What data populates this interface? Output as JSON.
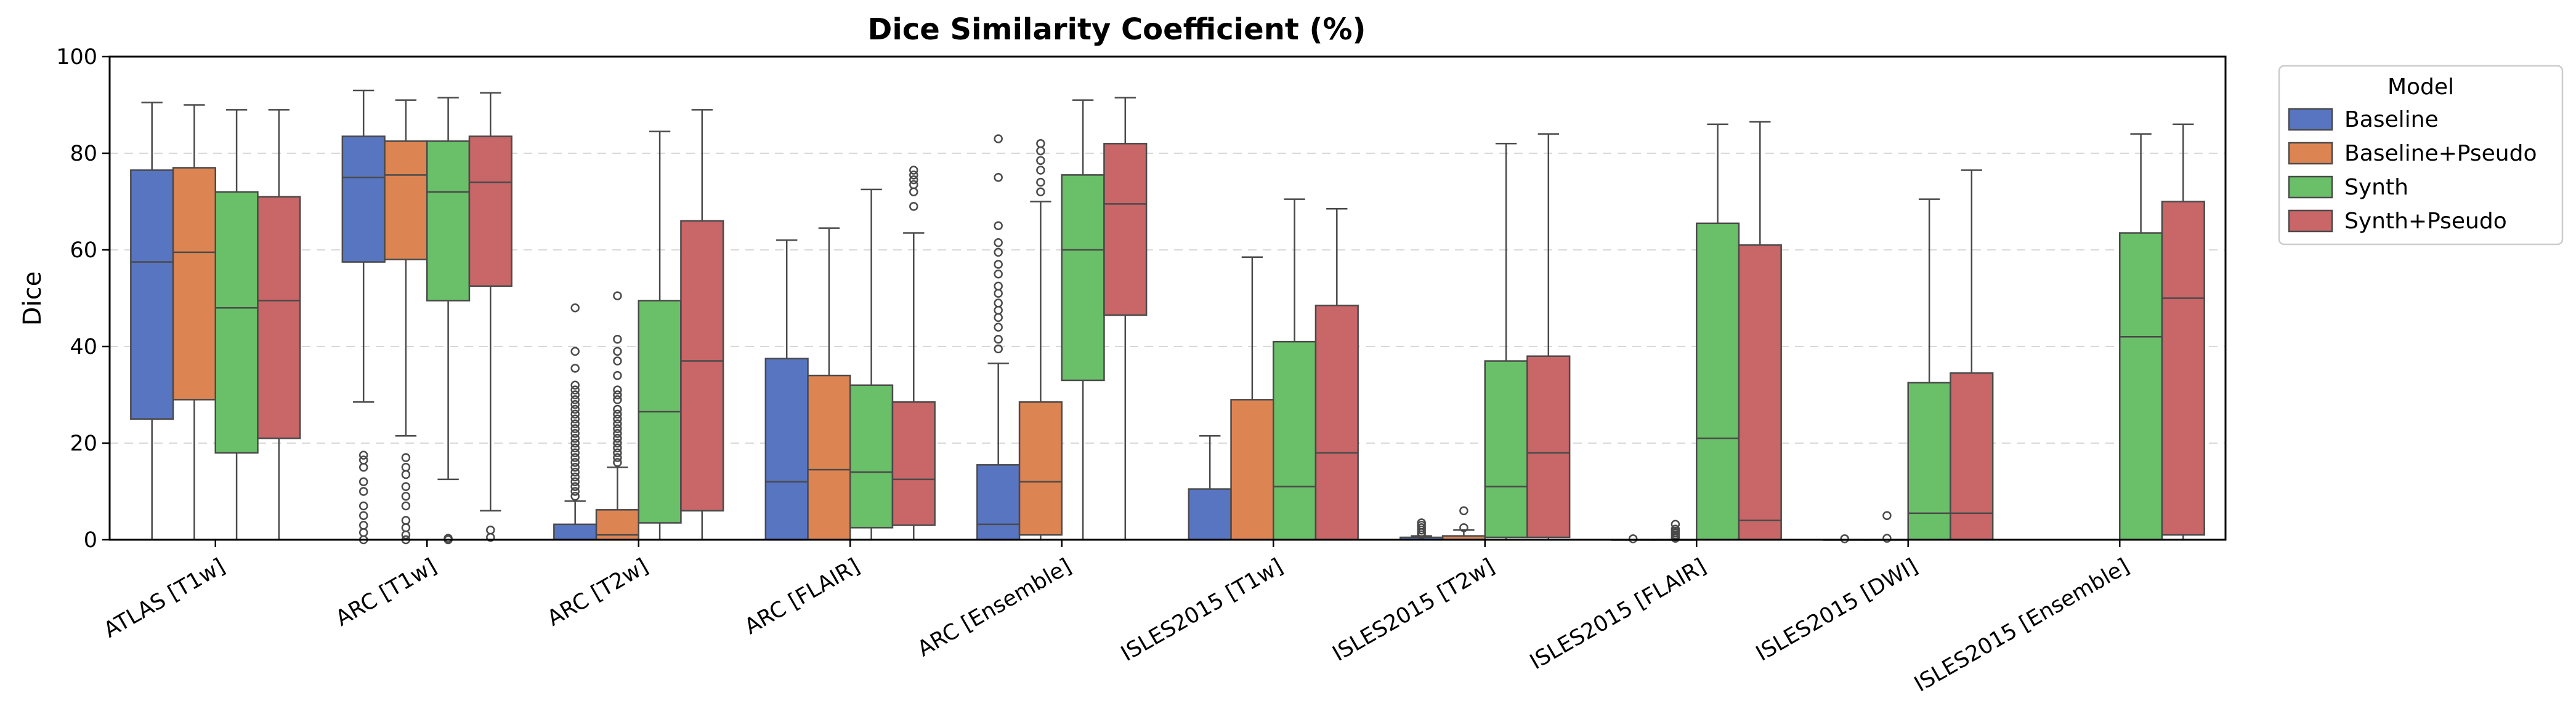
{
  "chart_data": {
    "type": "box",
    "title": "Dice Similarity Coefficient (%)",
    "xlabel": "",
    "ylabel": "Dice",
    "ylim": [
      0,
      100
    ],
    "yticks": [
      0,
      20,
      40,
      60,
      80,
      100
    ],
    "grid": "horizontal dashed",
    "legend_title": "Model",
    "legend_position": "outside right",
    "categories": [
      "ATLAS [T1w]",
      "ARC [T1w]",
      "ARC [T2w]",
      "ARC [FLAIR]",
      "ARC [Ensemble]",
      "ISLES2015 [T1w]",
      "ISLES2015 [T2w]",
      "ISLES2015 [FLAIR]",
      "ISLES2015 [DWI]",
      "ISLES2015 [Ensemble]"
    ],
    "series": [
      {
        "name": "Baseline",
        "color": "#5875c2",
        "boxes": [
          {
            "whislo": 0,
            "q1": 25,
            "med": 57.5,
            "q3": 76.5,
            "whishi": 90.5,
            "fliers": []
          },
          {
            "whislo": 28.5,
            "q1": 57.5,
            "med": 75,
            "q3": 83.5,
            "whishi": 93,
            "fliers": [
              0,
              1.5,
              3,
              5,
              7,
              10,
              12,
              15,
              16.5,
              17.5
            ]
          },
          {
            "whislo": 0,
            "q1": 0,
            "med": 0,
            "q3": 3.2,
            "whishi": 8,
            "fliers": [
              9,
              10,
              11,
              12,
              13,
              14,
              15,
              16,
              17,
              18,
              19,
              20,
              21,
              22,
              23,
              24,
              25,
              26,
              27,
              28,
              29,
              30,
              31,
              32,
              35.5,
              39,
              48
            ]
          },
          {
            "whislo": 0,
            "q1": 0,
            "med": 12,
            "q3": 37.5,
            "whishi": 62,
            "fliers": []
          },
          {
            "whislo": 0,
            "q1": 0,
            "med": 3.2,
            "q3": 15.5,
            "whishi": 36.5,
            "fliers": [
              39.5,
              41.5,
              44,
              46,
              47.5,
              49,
              51,
              52.5,
              55,
              57,
              59.5,
              61.5,
              65,
              75,
              83
            ]
          },
          {
            "whislo": 0,
            "q1": 0,
            "med": 0,
            "q3": 10.5,
            "whishi": 21.5,
            "fliers": []
          },
          {
            "whislo": 0,
            "q1": 0,
            "med": 0,
            "q3": 0.5,
            "whishi": 0.8,
            "fliers": [
              1,
              1.5,
              2,
              2.5,
              3,
              3.5
            ]
          },
          {
            "whislo": 0,
            "q1": 0,
            "med": 0,
            "q3": 0,
            "whishi": 0,
            "fliers": [
              0.2
            ]
          },
          {
            "whislo": 0,
            "q1": 0,
            "med": 0,
            "q3": 0,
            "whishi": 0,
            "fliers": [
              0.2
            ]
          },
          null
        ]
      },
      {
        "name": "Baseline+Pseudo",
        "color": "#dd8453",
        "boxes": [
          {
            "whislo": 0,
            "q1": 29,
            "med": 59.5,
            "q3": 77,
            "whishi": 90,
            "fliers": []
          },
          {
            "whislo": 21.5,
            "q1": 58,
            "med": 75.5,
            "q3": 82.5,
            "whishi": 91,
            "fliers": [
              0,
              1,
              2.5,
              4,
              7,
              9,
              11,
              13.5,
              15,
              17
            ]
          },
          {
            "whislo": 0,
            "q1": 0,
            "med": 1,
            "q3": 6.2,
            "whishi": 15,
            "fliers": [
              16,
              17,
              18,
              19,
              20,
              21,
              22,
              23,
              24,
              25,
              26,
              27,
              29,
              30,
              31,
              34,
              37,
              39,
              41.5,
              50.5
            ]
          },
          {
            "whislo": 0,
            "q1": 0,
            "med": 14.5,
            "q3": 34,
            "whishi": 64.5,
            "fliers": []
          },
          {
            "whislo": 0,
            "q1": 1,
            "med": 12,
            "q3": 28.5,
            "whishi": 70,
            "fliers": [
              72,
              74,
              76.5,
              78.5,
              80.5,
              82
            ]
          },
          {
            "whislo": 0,
            "q1": 0,
            "med": 0,
            "q3": 29,
            "whishi": 58.5,
            "fliers": []
          },
          {
            "whislo": 0,
            "q1": 0,
            "med": 0,
            "q3": 0.8,
            "whishi": 2,
            "fliers": [
              2.5,
              6
            ]
          },
          {
            "whislo": 0,
            "q1": 0,
            "med": 0,
            "q3": 0,
            "whishi": 0,
            "fliers": [
              0.3,
              0.6,
              1,
              1.4,
              1.8,
              2.2,
              3.2
            ]
          },
          {
            "whislo": 0,
            "q1": 0,
            "med": 0,
            "q3": 0,
            "whishi": 0,
            "fliers": [
              0.3,
              5
            ]
          },
          null
        ]
      },
      {
        "name": "Synth",
        "color": "#6abf69",
        "boxes": [
          {
            "whislo": 0,
            "q1": 18,
            "med": 48,
            "q3": 72,
            "whishi": 89,
            "fliers": []
          },
          {
            "whislo": 12.5,
            "q1": 49.5,
            "med": 72,
            "q3": 82.5,
            "whishi": 91.5,
            "fliers": [
              0,
              0.3
            ]
          },
          {
            "whislo": 0,
            "q1": 3.5,
            "med": 26.5,
            "q3": 49.5,
            "whishi": 84.5,
            "fliers": []
          },
          {
            "whislo": 0,
            "q1": 2.5,
            "med": 14,
            "q3": 32,
            "whishi": 72.5,
            "fliers": []
          },
          {
            "whislo": 0,
            "q1": 33,
            "med": 60,
            "q3": 75.5,
            "whishi": 91,
            "fliers": []
          },
          {
            "whislo": 0,
            "q1": 0,
            "med": 11,
            "q3": 41,
            "whishi": 70.5,
            "fliers": []
          },
          {
            "whislo": 0,
            "q1": 0.5,
            "med": 11,
            "q3": 37,
            "whishi": 82,
            "fliers": []
          },
          {
            "whislo": 0,
            "q1": 0,
            "med": 21,
            "q3": 65.5,
            "whishi": 86,
            "fliers": []
          },
          {
            "whislo": 0,
            "q1": 0,
            "med": 5.5,
            "q3": 32.5,
            "whishi": 70.5,
            "fliers": []
          },
          {
            "whislo": 0,
            "q1": 0,
            "med": 42,
            "q3": 63.5,
            "whishi": 84,
            "fliers": []
          }
        ]
      },
      {
        "name": "Synth+Pseudo",
        "color": "#c86668",
        "boxes": [
          {
            "whislo": 0,
            "q1": 21,
            "med": 49.5,
            "q3": 71,
            "whishi": 89,
            "fliers": []
          },
          {
            "whislo": 6,
            "q1": 52.5,
            "med": 74,
            "q3": 83.5,
            "whishi": 92.5,
            "fliers": [
              0.5,
              2
            ]
          },
          {
            "whislo": 0,
            "q1": 6,
            "med": 37,
            "q3": 66,
            "whishi": 89,
            "fliers": []
          },
          {
            "whislo": 0,
            "q1": 3,
            "med": 12.5,
            "q3": 28.5,
            "whishi": 63.5,
            "fliers": [
              69,
              72,
              73.5,
              74.5,
              75.5,
              76.5
            ]
          },
          {
            "whislo": 0,
            "q1": 46.5,
            "med": 69.5,
            "q3": 82,
            "whishi": 91.5,
            "fliers": []
          },
          {
            "whislo": 0,
            "q1": 0,
            "med": 18,
            "q3": 48.5,
            "whishi": 68.5,
            "fliers": []
          },
          {
            "whislo": 0,
            "q1": 0.5,
            "med": 18,
            "q3": 38,
            "whishi": 84,
            "fliers": []
          },
          {
            "whislo": 0,
            "q1": 0,
            "med": 4,
            "q3": 61,
            "whishi": 86.5,
            "fliers": []
          },
          {
            "whislo": 0,
            "q1": 0,
            "med": 5.5,
            "q3": 34.5,
            "whishi": 76.5,
            "fliers": []
          },
          {
            "whislo": 0,
            "q1": 1,
            "med": 50,
            "q3": 70,
            "whishi": 86,
            "fliers": []
          }
        ]
      }
    ]
  }
}
